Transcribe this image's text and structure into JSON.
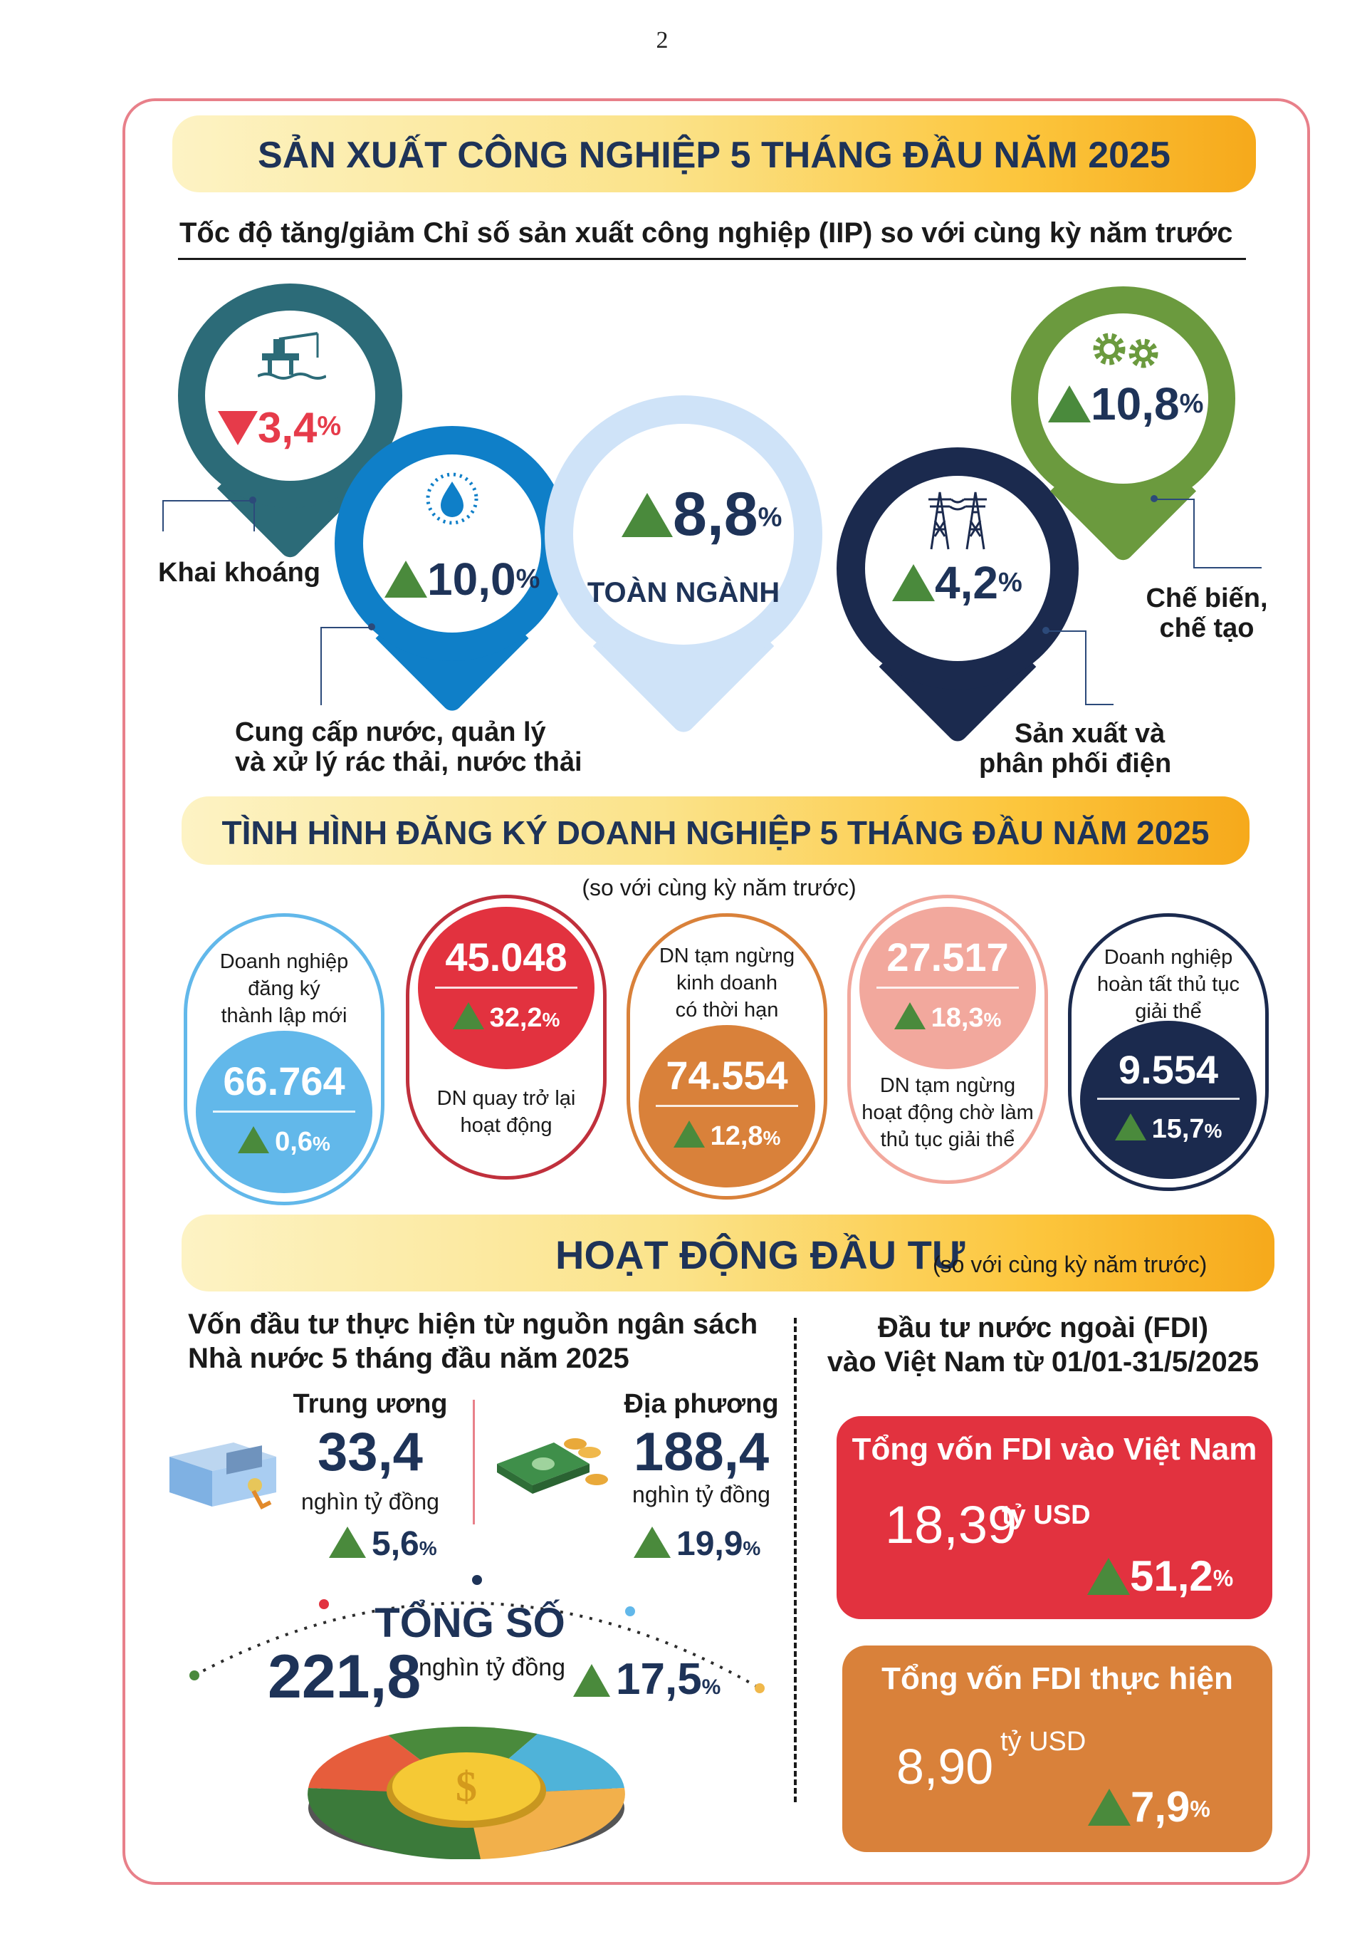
{
  "page_number": "2",
  "iip": {
    "title": "SẢN XUẤT CÔNG NGHIỆP 5 THÁNG ĐẦU NĂM 2025",
    "subtitle": "Tốc độ tăng/giảm Chỉ số sản xuất công nghiệp (IIP) so với cùng kỳ năm trước",
    "khai_khoang": {
      "value": "3,4",
      "unit": "%",
      "label": "Khai khoáng",
      "direction": "down",
      "icon": "oil-rig-icon"
    },
    "nuoc": {
      "value": "10,0",
      "unit": "%",
      "label_1": "Cung cấp nước, quản lý",
      "label_2": "và xử lý rác thải, nước thải",
      "direction": "up",
      "icon": "water-drop-icon"
    },
    "toan_nganh": {
      "value": "8,8",
      "unit": "%",
      "label": "TOÀN NGÀNH",
      "direction": "up"
    },
    "dien": {
      "value": "4,2",
      "unit": "%",
      "label_1": "Sản xuất và",
      "label_2": "phân phối điện",
      "direction": "up",
      "icon": "power-tower-icon"
    },
    "che_bien": {
      "value": "10,8",
      "unit": "%",
      "label_1": "Chế biến,",
      "label_2": "chế tạo",
      "direction": "up",
      "icon": "gears-icon"
    },
    "colors": {
      "khai_khoang": "#2c6b78",
      "nuoc": "#0f7fc8",
      "toan_nganh": "#cfe3f8",
      "dien": "#1b2a4e",
      "che_bien": "#6b9a3e",
      "up": "#4a8a3c",
      "down": "#e63b4a"
    }
  },
  "dn": {
    "title": "TÌNH HÌNH ĐĂNG KÝ DOANH NGHIỆP 5 THÁNG ĐẦU NĂM 2025",
    "note": "(so với cùng kỳ năm trước)",
    "cards": [
      {
        "label_1": "Doanh nghiệp",
        "label_2": "đăng ký",
        "label_3": "thành lập mới",
        "value": "66.764",
        "change": "0,6",
        "unit": "%",
        "color": "#62b8ea"
      },
      {
        "value": "45.048",
        "change": "32,2",
        "unit": "%",
        "label_1": "DN quay trở lại",
        "label_2": "hoạt động",
        "color": "#e2323f"
      },
      {
        "label_1": "DN tạm ngừng",
        "label_2": "kinh doanh",
        "label_3": "có thời hạn",
        "value": "74.554",
        "change": "12,8",
        "unit": "%",
        "color": "#d9813a"
      },
      {
        "value": "27.517",
        "change": "18,3",
        "unit": "%",
        "label_1": "DN tạm ngừng",
        "label_2": "hoạt động chờ làm",
        "label_3": "thủ tục giải thể",
        "color": "#f2a89d"
      },
      {
        "label_1": "Doanh nghiệp",
        "label_2": "hoàn tất thủ tục",
        "label_3": "giải thể",
        "value": "9.554",
        "change": "15,7",
        "unit": "%",
        "color": "#1b2a4e"
      }
    ]
  },
  "invest": {
    "title": "HOẠT ĐỘNG ĐẦU TƯ",
    "note": "(so với cùng kỳ năm trước)",
    "left_title_1": "Vốn đầu tư thực hiện từ nguồn ngân sách",
    "left_title_2": "Nhà nước 5 tháng đầu năm 2025",
    "trung_uong": {
      "label": "Trung ương",
      "value": "33,4",
      "unit": "nghìn tỷ đồng",
      "change": "5,6",
      "pct": "%"
    },
    "dia_phuong": {
      "label": "Địa phương",
      "value": "188,4",
      "unit": "nghìn tỷ đồng",
      "change": "19,9",
      "pct": "%"
    },
    "tong": {
      "label": "TỔNG SỐ",
      "value": "221,8",
      "unit": "nghìn tỷ đồng",
      "change": "17,5",
      "pct": "%"
    },
    "fdi_title_1": "Đầu tư nước ngoài (FDI)",
    "fdi_title_2": "vào Việt Nam từ 01/01-31/5/2025",
    "fdi_total": {
      "label": "Tổng vốn FDI vào Việt Nam",
      "value": "18,39",
      "unit": "tỷ USD",
      "change": "51,2",
      "pct": "%",
      "color": "#e2323f"
    },
    "fdi_done": {
      "label": "Tổng vốn FDI thực hiện",
      "value": "8,90",
      "unit": "tỷ USD",
      "change": "7,9",
      "pct": "%",
      "color": "#d9813a"
    }
  }
}
